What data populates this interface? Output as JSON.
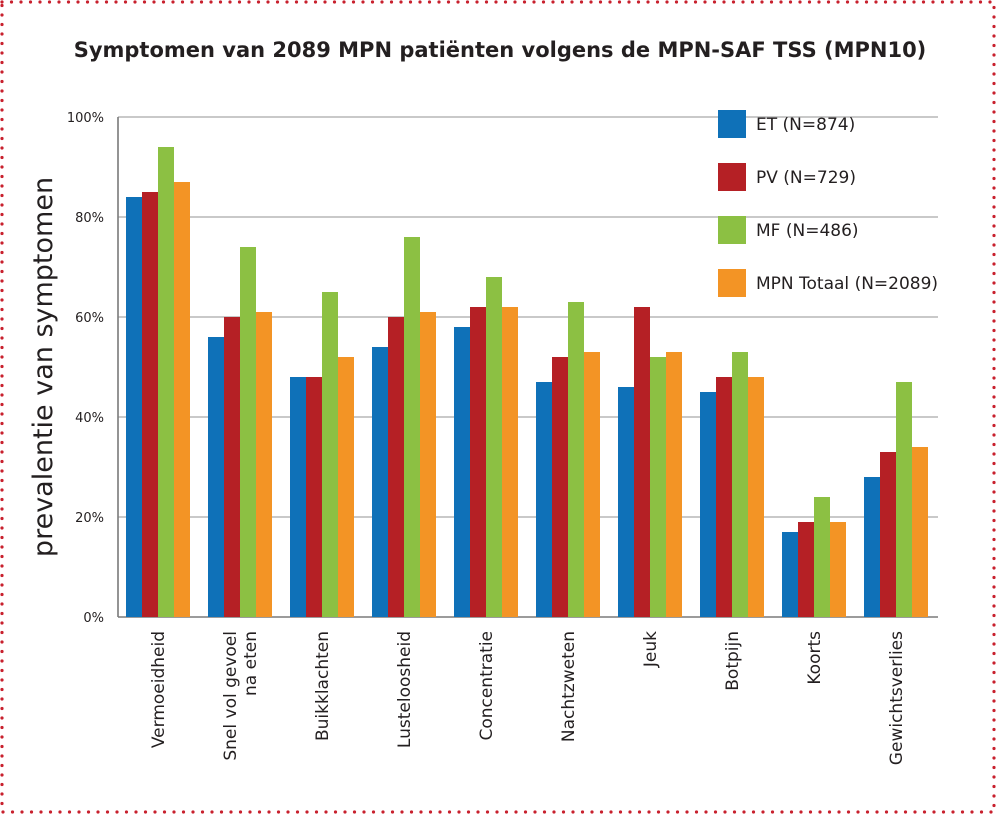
{
  "chart_data": {
    "type": "bar",
    "title": "Symptomen van 2089 MPN patiënten volgens de MPN-SAF TSS (MPN10)",
    "ylabel": "prevalentie van symptomen",
    "xlabel": "",
    "ylim": [
      0,
      100
    ],
    "yticks": [
      "0%",
      "20%",
      "40%",
      "60%",
      "80%",
      "100%"
    ],
    "grid": true,
    "legend_position": "top-right",
    "categories": [
      "Vermoeidheid",
      "Snel vol gevoel\nna eten",
      "Buikklachten",
      "Lusteloosheid",
      "Concentratie",
      "Nachtzweten",
      "Jeuk",
      "Botpijn",
      "Koorts",
      "Gewichtsverlies"
    ],
    "series": [
      {
        "name": "ET (N=874)",
        "color": "#0f71b8",
        "values": [
          84,
          56,
          48,
          54,
          58,
          47,
          46,
          45,
          17,
          28
        ]
      },
      {
        "name": "PV (N=729)",
        "color": "#b52025",
        "values": [
          85,
          60,
          48,
          60,
          62,
          52,
          62,
          48,
          19,
          33
        ]
      },
      {
        "name": "MF (N=486)",
        "color": "#8cc043",
        "values": [
          94,
          74,
          65,
          76,
          68,
          63,
          52,
          53,
          24,
          47
        ]
      },
      {
        "name": "MPN Totaal (N=2089)",
        "color": "#f39425",
        "values": [
          87,
          61,
          52,
          61,
          62,
          53,
          53,
          48,
          19,
          34
        ]
      }
    ]
  },
  "style": {
    "border_color": "#c8202d",
    "grid_color": "#b7b7b7",
    "axis_color": "#7a7a7a"
  }
}
